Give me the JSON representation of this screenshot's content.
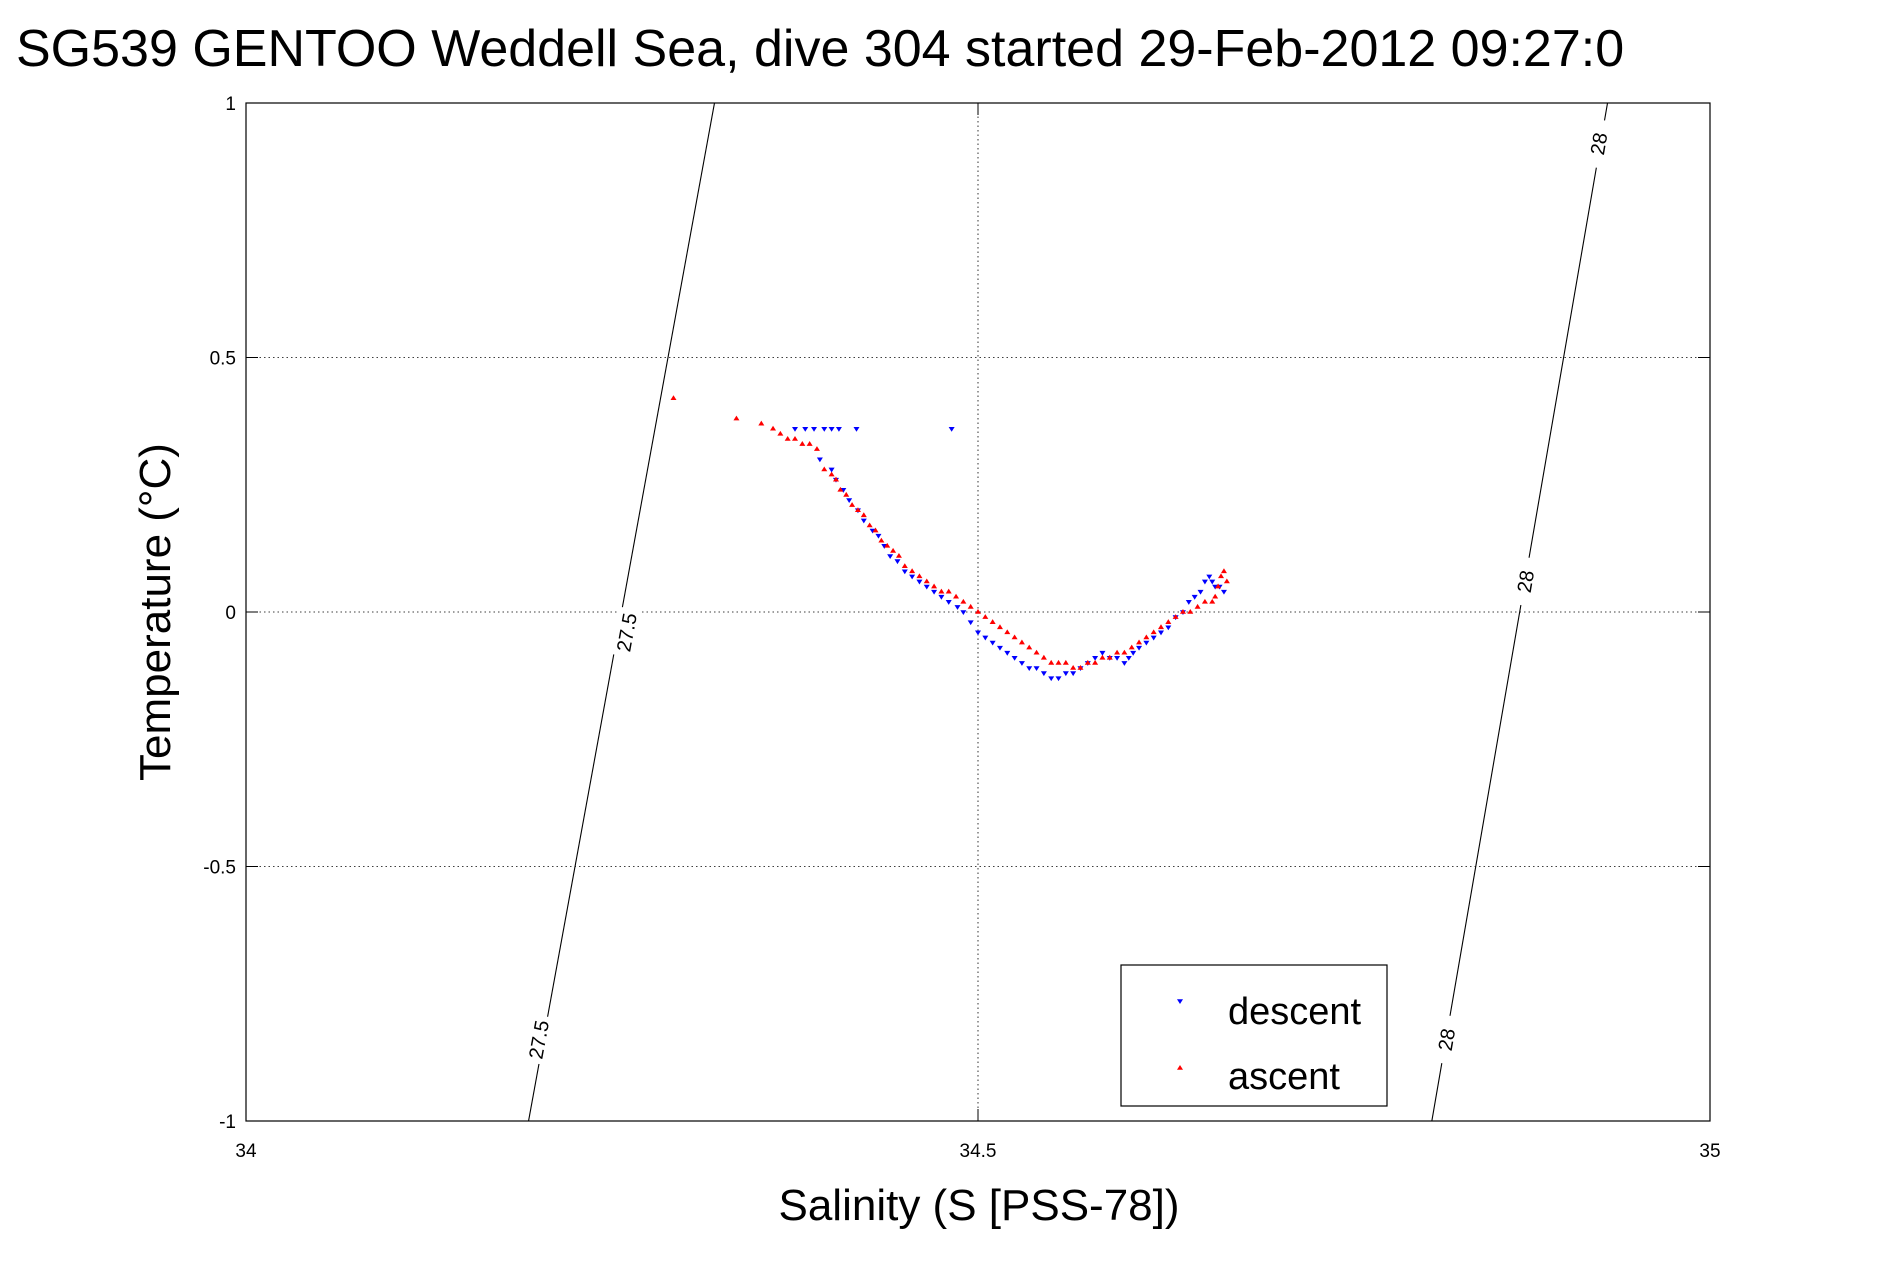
{
  "chart_data": {
    "type": "scatter",
    "title": "SG539 GENTOO Weddell Sea, dive 304 started 29-Feb-2012 09:27:0",
    "xlabel": "Salinity (S [PSS-78])",
    "ylabel": "Temperature (°C)",
    "xlim": [
      34,
      35
    ],
    "ylim": [
      -1,
      1
    ],
    "xticks": [
      "34",
      "34.5",
      "35"
    ],
    "yticks": [
      "-1",
      "-0.5",
      "0",
      "0.5",
      "1"
    ],
    "grid": true,
    "legend": {
      "placement": "bottom-right",
      "entries": [
        "descent",
        "ascent"
      ]
    },
    "colors": {
      "descent": "#0000ff",
      "ascent": "#ff0000",
      "contour": "#000000"
    },
    "contours": [
      {
        "label": "27.5",
        "points": [
          [
            34.193,
            -1.0
          ],
          [
            34.32,
            1.0
          ]
        ],
        "label_positions": [
          [
            34.2,
            -0.84
          ],
          [
            34.26,
            -0.04
          ]
        ]
      },
      {
        "label": "28",
        "points": [
          [
            34.81,
            -1.0
          ],
          [
            34.93,
            1.0
          ]
        ],
        "label_positions": [
          [
            34.82,
            -0.84
          ],
          [
            34.874,
            0.06
          ],
          [
            34.924,
            0.92
          ]
        ]
      }
    ],
    "series": [
      {
        "name": "descent",
        "marker": "triangle-down",
        "x": [
          34.375,
          34.382,
          34.388,
          34.395,
          34.4,
          34.405,
          34.417,
          34.482,
          34.392,
          34.4,
          34.403,
          34.408,
          34.412,
          34.418,
          34.422,
          34.428,
          34.432,
          34.436,
          34.44,
          34.445,
          34.45,
          34.455,
          34.46,
          34.465,
          34.47,
          34.475,
          34.48,
          34.486,
          34.49,
          34.495,
          34.5,
          34.505,
          34.51,
          34.515,
          34.52,
          34.525,
          34.53,
          34.535,
          34.54,
          34.545,
          34.55,
          34.555,
          34.56,
          34.565,
          34.57,
          34.575,
          34.58,
          34.585,
          34.59,
          34.595,
          34.6,
          34.603,
          34.606,
          34.61,
          34.615,
          34.62,
          34.625,
          34.63,
          34.635,
          34.64,
          34.644,
          34.648,
          34.652,
          34.655,
          34.658,
          34.66,
          34.662,
          34.665,
          34.668
        ],
        "y": [
          0.36,
          0.36,
          0.36,
          0.36,
          0.36,
          0.36,
          0.36,
          0.36,
          0.3,
          0.28,
          0.26,
          0.24,
          0.22,
          0.2,
          0.18,
          0.16,
          0.15,
          0.13,
          0.11,
          0.1,
          0.08,
          0.07,
          0.06,
          0.05,
          0.04,
          0.03,
          0.02,
          0.01,
          0.0,
          -0.02,
          -0.04,
          -0.05,
          -0.06,
          -0.07,
          -0.08,
          -0.09,
          -0.1,
          -0.11,
          -0.11,
          -0.12,
          -0.13,
          -0.13,
          -0.12,
          -0.12,
          -0.11,
          -0.1,
          -0.09,
          -0.08,
          -0.09,
          -0.09,
          -0.1,
          -0.09,
          -0.08,
          -0.07,
          -0.06,
          -0.05,
          -0.04,
          -0.03,
          -0.01,
          0.0,
          0.02,
          0.03,
          0.04,
          0.06,
          0.07,
          0.06,
          0.05,
          0.05,
          0.04
        ]
      },
      {
        "name": "ascent",
        "marker": "triangle-up",
        "x": [
          34.292,
          34.335,
          34.352,
          34.36,
          34.365,
          34.37,
          34.375,
          34.38,
          34.385,
          34.39,
          34.395,
          34.4,
          34.403,
          34.406,
          34.41,
          34.414,
          34.418,
          34.422,
          34.426,
          34.43,
          34.434,
          34.438,
          34.442,
          34.446,
          34.45,
          34.455,
          34.46,
          34.465,
          34.47,
          34.475,
          34.48,
          34.485,
          34.49,
          34.495,
          34.5,
          34.505,
          34.51,
          34.515,
          34.52,
          34.525,
          34.53,
          34.535,
          34.54,
          34.545,
          34.55,
          34.555,
          34.56,
          34.565,
          34.57,
          34.575,
          34.58,
          34.585,
          34.59,
          34.595,
          34.6,
          34.605,
          34.61,
          34.615,
          34.62,
          34.625,
          34.63,
          34.635,
          34.64,
          34.645,
          34.65,
          34.655,
          34.66,
          34.662,
          34.664,
          34.666,
          34.668,
          34.67
        ],
        "y": [
          0.42,
          0.38,
          0.37,
          0.36,
          0.35,
          0.34,
          0.34,
          0.33,
          0.33,
          0.32,
          0.28,
          0.27,
          0.26,
          0.24,
          0.23,
          0.21,
          0.2,
          0.19,
          0.17,
          0.16,
          0.14,
          0.13,
          0.12,
          0.11,
          0.09,
          0.08,
          0.07,
          0.06,
          0.05,
          0.04,
          0.04,
          0.03,
          0.02,
          0.01,
          0.0,
          -0.01,
          -0.02,
          -0.03,
          -0.04,
          -0.05,
          -0.06,
          -0.07,
          -0.08,
          -0.09,
          -0.1,
          -0.1,
          -0.1,
          -0.11,
          -0.11,
          -0.1,
          -0.1,
          -0.09,
          -0.09,
          -0.08,
          -0.08,
          -0.07,
          -0.06,
          -0.05,
          -0.04,
          -0.03,
          -0.02,
          -0.01,
          0.0,
          0.0,
          0.01,
          0.02,
          0.02,
          0.03,
          0.05,
          0.07,
          0.08,
          0.06
        ]
      }
    ]
  }
}
